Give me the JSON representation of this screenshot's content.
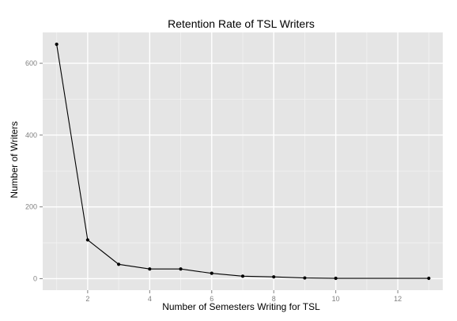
{
  "chart_data": {
    "type": "line",
    "title": "Retention Rate of TSL Writers",
    "xlabel": "Number of Semesters Writing for TSL",
    "ylabel": "Number of Writers",
    "x_ticks": [
      2,
      4,
      6,
      8,
      10,
      12
    ],
    "y_ticks": [
      0,
      200,
      400,
      600
    ],
    "xlim": [
      0.55,
      13.45
    ],
    "ylim": [
      -32,
      686
    ],
    "grid": true,
    "legend": "none",
    "series": [
      {
        "x": [
          1,
          2,
          3,
          4,
          5,
          6,
          7,
          8,
          9,
          10,
          13
        ],
        "y": [
          653,
          108,
          40,
          27,
          27,
          15,
          7,
          5,
          2,
          1,
          1
        ]
      }
    ]
  },
  "colors": {
    "panel_background": "#e5e5e5",
    "major_grid": "#ffffff",
    "minor_grid": "#f2f2f2",
    "line": "#000000",
    "point": "#000000",
    "tick_label": "#7f7f7f",
    "tick_mark": "#7f7f7f"
  }
}
